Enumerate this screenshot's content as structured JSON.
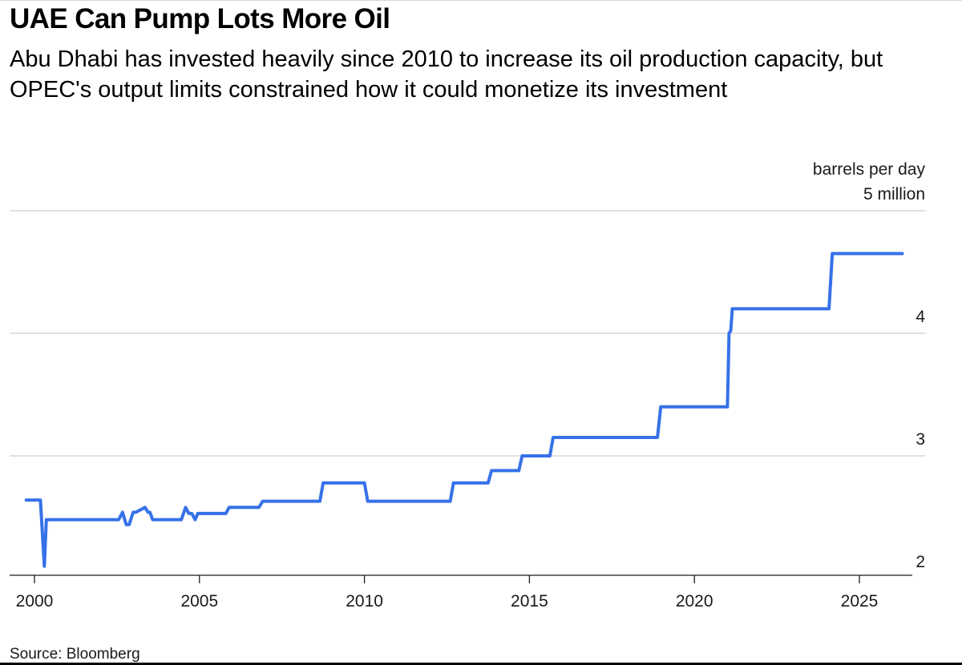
{
  "header": {
    "title": "UAE Can Pump Lots More Oil",
    "subtitle": "Abu Dhabi has invested heavily since 2010 to increase its oil production capacity, but OPEC's output limits constrained how it could monetize its investment"
  },
  "footer": {
    "source": "Source: Bloomberg"
  },
  "chart_data": {
    "type": "line",
    "title": "UAE Can Pump Lots More Oil",
    "subtitle": "Abu Dhabi has invested heavily since 2010 to increase its oil production capacity, but OPEC's output limits constrained how it could monetize its investment",
    "xlabel": "",
    "ylabel": "barrels per day",
    "y_unit_top": "barrels per day",
    "y_unit_bottom": "5 million",
    "xlim": [
      1999.6,
      2026.5
    ],
    "ylim": [
      2,
      5
    ],
    "x_ticks": [
      2000,
      2005,
      2010,
      2015,
      2020,
      2025
    ],
    "x_tick_labels": [
      "2000",
      "2005",
      "2010",
      "2015",
      "2020",
      "2025"
    ],
    "y_ticks": [
      2,
      3,
      4,
      5
    ],
    "y_tick_labels": [
      "2",
      "3",
      "4",
      "5 million"
    ],
    "grid": true,
    "color": "#3671e8",
    "series": [
      {
        "x": [
          1999.75,
          2000.18,
          2000.3,
          2000.36,
          2002.55,
          2002.67,
          2002.78,
          2002.87,
          2002.99,
          2003.07,
          2003.35,
          2003.44,
          2003.5,
          2003.58,
          2003.85,
          2003.9,
          2004.45,
          2004.58,
          2004.68,
          2004.77,
          2004.87,
          2004.95,
          2005.8,
          2005.9,
          2006.8,
          2006.92,
          2008.65,
          2008.75,
          2010.0,
          2010.1,
          2012.6,
          2012.7,
          2013.75,
          2013.85,
          2014.68,
          2014.78,
          2015.62,
          2015.72,
          2018.88,
          2018.98,
          2021.0,
          2021.05,
          2021.1,
          2021.15,
          2024.08,
          2024.18,
          2026.3
        ],
        "y": [
          2.64,
          2.64,
          2.1,
          2.48,
          2.48,
          2.54,
          2.44,
          2.44,
          2.54,
          2.54,
          2.58,
          2.54,
          2.54,
          2.48,
          2.48,
          2.48,
          2.48,
          2.58,
          2.53,
          2.53,
          2.48,
          2.53,
          2.53,
          2.58,
          2.58,
          2.63,
          2.63,
          2.78,
          2.78,
          2.63,
          2.63,
          2.78,
          2.78,
          2.88,
          2.88,
          3.0,
          3.0,
          3.15,
          3.15,
          3.4,
          3.4,
          4.0,
          4.02,
          4.2,
          4.2,
          4.65,
          4.65
        ]
      }
    ]
  }
}
